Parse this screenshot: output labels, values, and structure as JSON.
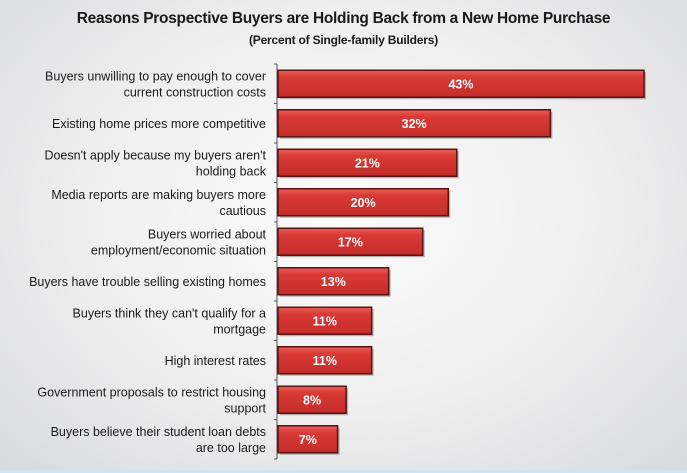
{
  "chart_data": {
    "type": "bar",
    "orientation": "horizontal",
    "title": "Reasons Prospective Buyers are Holding Back from a New Home Purchase",
    "subtitle": "(Percent of Single-family Builders)",
    "categories": [
      [
        "Buyers unwilling to pay enough to cover",
        "current construction costs"
      ],
      [
        "Existing home prices more competitive"
      ],
      [
        "Doesn't apply because my buyers aren't",
        "holding back"
      ],
      [
        "Media reports are making buyers more",
        "cautious"
      ],
      [
        "Buyers worried about",
        "employment/economic situation"
      ],
      [
        "Buyers have trouble selling existing homes"
      ],
      [
        "Buyers think they can't qualify for a",
        "mortgage"
      ],
      [
        "High interest rates"
      ],
      [
        "Government proposals to restrict housing",
        "support"
      ],
      [
        "Buyers believe their student loan debts",
        "are too large"
      ]
    ],
    "values": [
      43,
      32,
      21,
      20,
      17,
      13,
      11,
      11,
      8,
      7
    ],
    "data_labels": [
      "43%",
      "32%",
      "21%",
      "20%",
      "17%",
      "13%",
      "11%",
      "11%",
      "8%",
      "7%"
    ],
    "xlim": [
      0,
      43
    ],
    "grid": false,
    "legend": "none",
    "bar_color": "#d93a36",
    "bar_border_color": "#5a1212"
  }
}
